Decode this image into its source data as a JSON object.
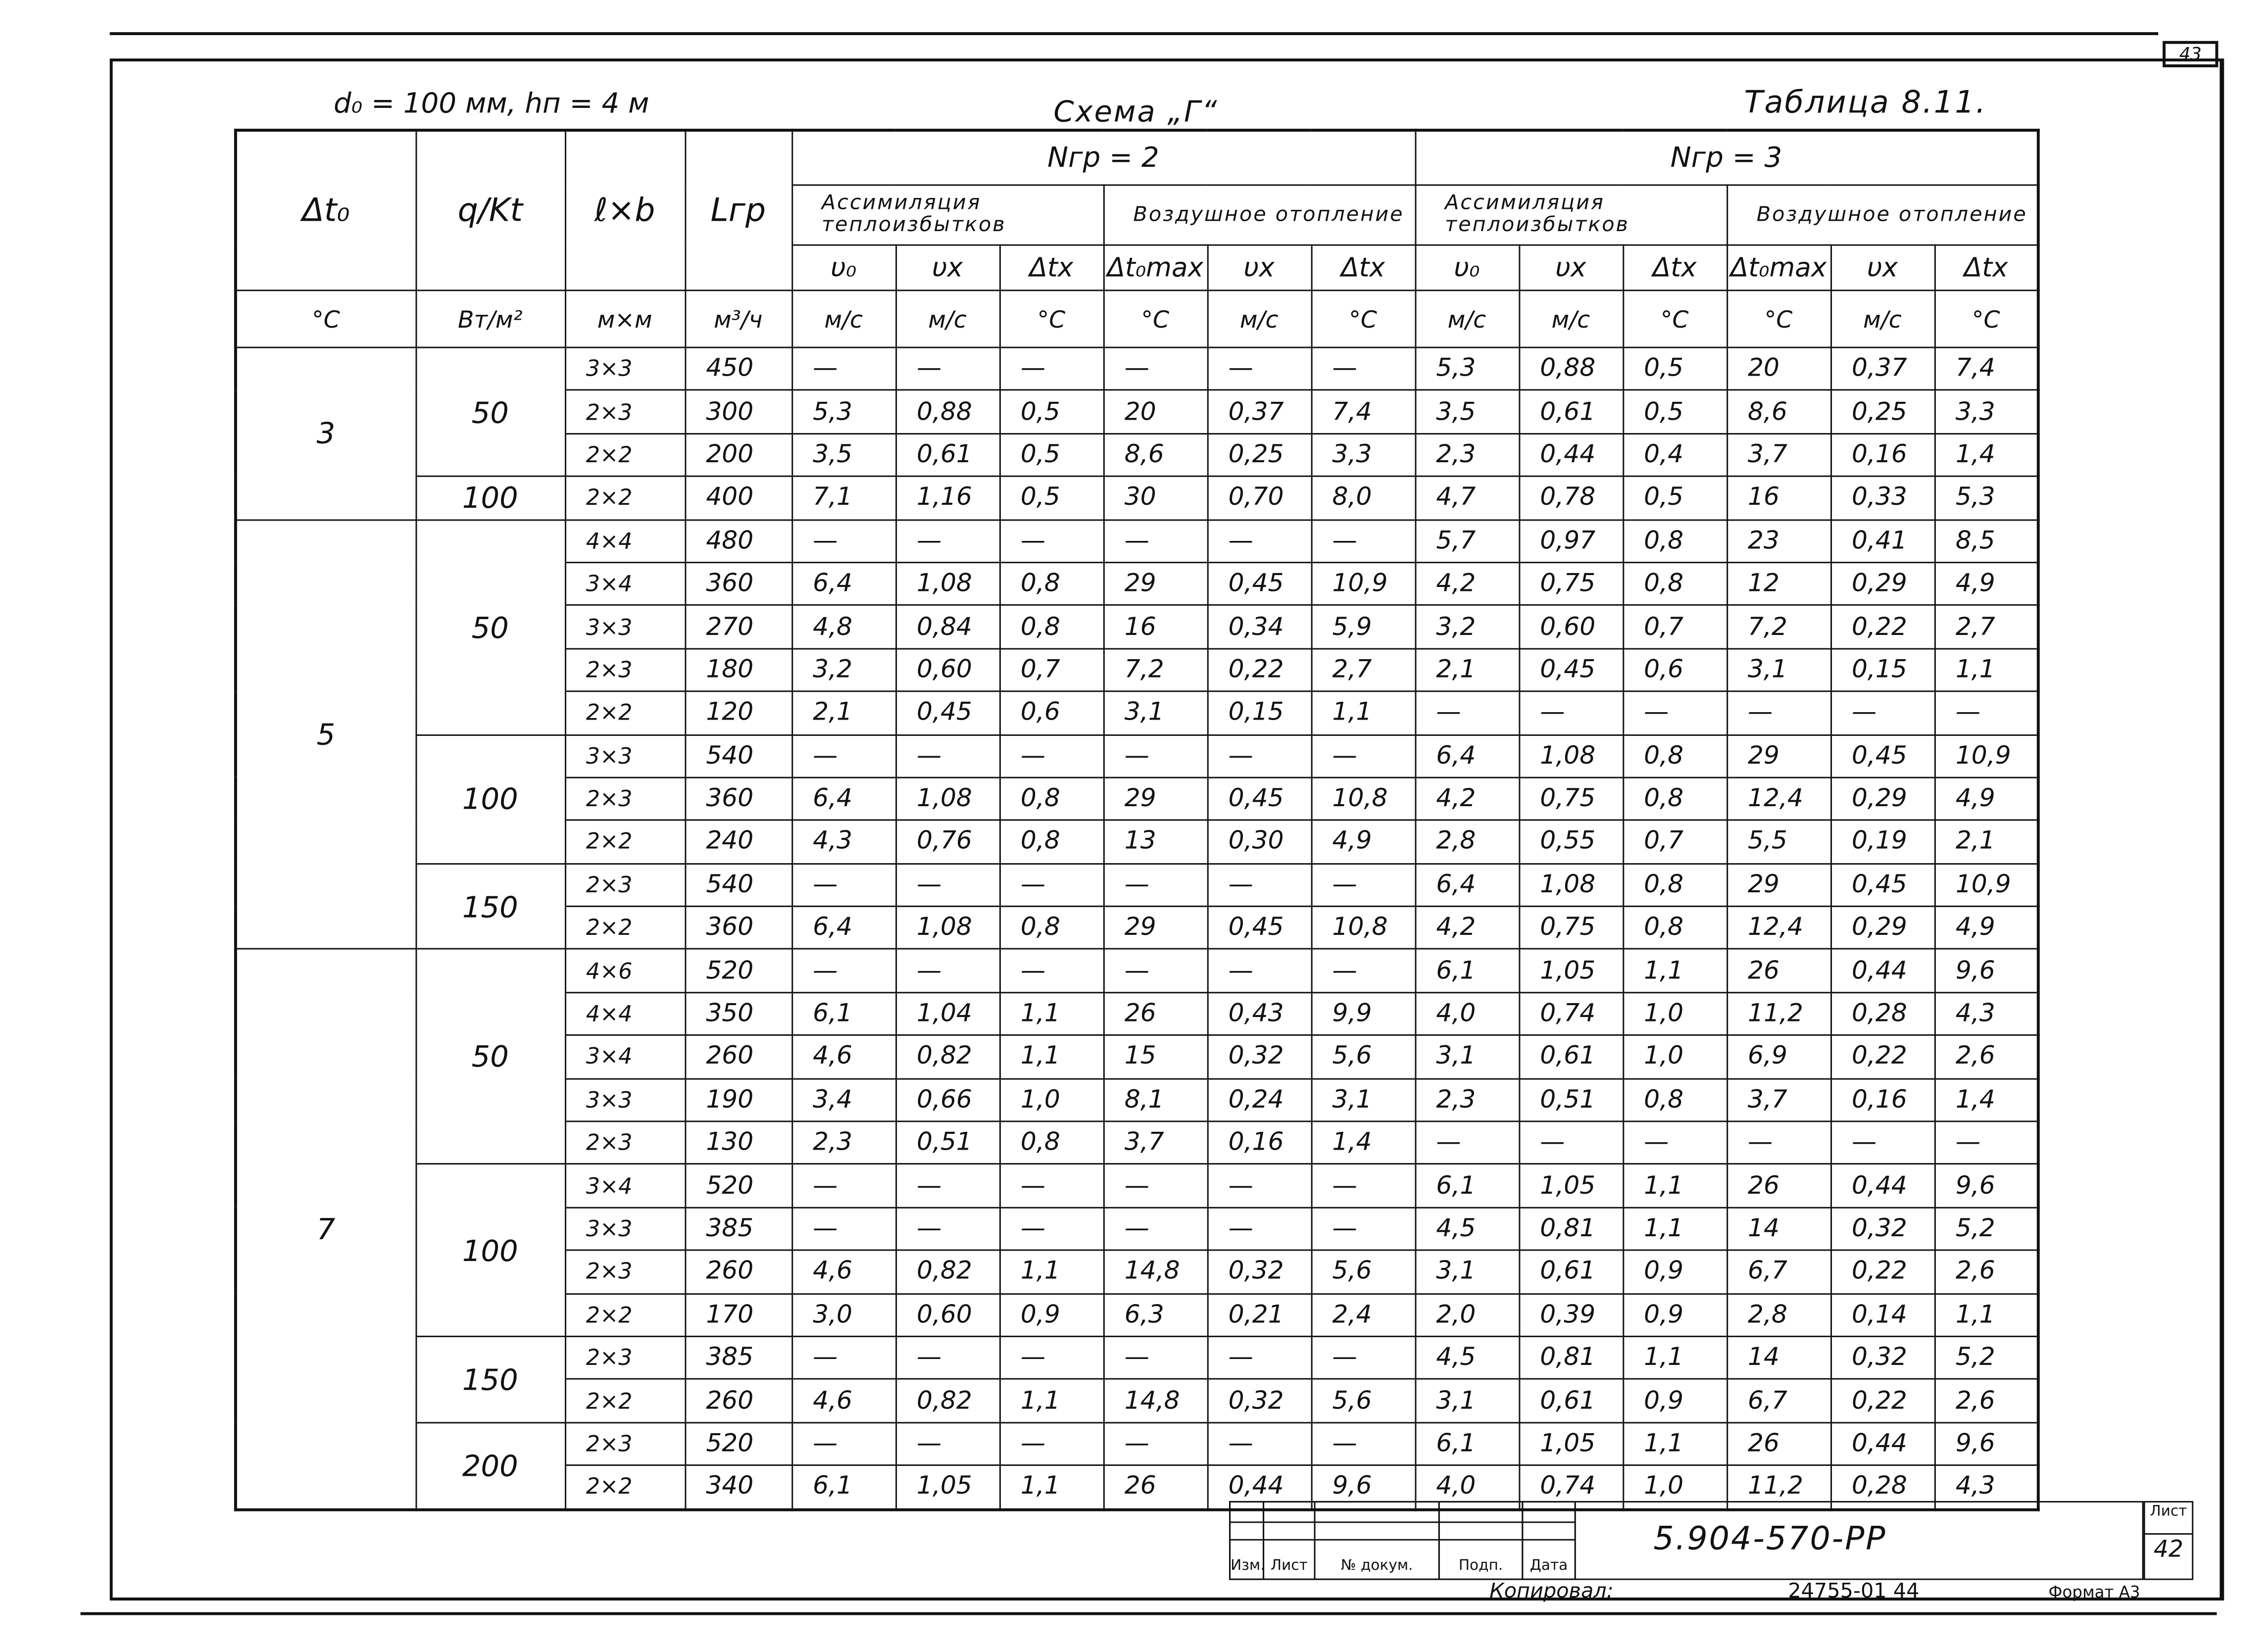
{
  "page_corner": "43",
  "header": {
    "parameters": "d₀ = 100 мм,  hп = 4 м",
    "scheme": "Схема „Г“",
    "table_number": "Таблица 8.11."
  },
  "table": {
    "head": {
      "dt": "Δt₀",
      "q": "q/Kt",
      "lb": "ℓ×b",
      "L": "Lгр",
      "n_groups": [
        "Nгр = 2",
        "Nгр = 3"
      ],
      "subgroups": [
        "Ассимиляция теплоизбытков",
        "Воздушное отопление",
        "Ассимиляция теплоизбытков",
        "Воздушное отопление"
      ],
      "symbols": [
        "υ₀",
        "υx",
        "Δtx",
        "Δt₀max",
        "υx",
        "Δtx",
        "υ₀",
        "υx",
        "Δtx",
        "Δt₀max",
        "υx",
        "Δtx"
      ],
      "units": [
        "°C",
        "Вт/м²",
        "м×м",
        "м³/ч",
        "м/с",
        "м/с",
        "°C",
        "°C",
        "м/с",
        "°C",
        "м/с",
        "м/с",
        "°C",
        "°C",
        "м/с",
        "°C"
      ]
    },
    "groups": [
      {
        "dt": "3",
        "subgroups": [
          {
            "q": "50",
            "rows": [
              {
                "size": "3×3",
                "length": "450",
                "values": [
                  "—",
                  "—",
                  "—",
                  "—",
                  "—",
                  "—",
                  "5,3",
                  "0,88",
                  "0,5",
                  "20",
                  "0,37",
                  "7,4"
                ]
              },
              {
                "size": "2×3",
                "length": "300",
                "values": [
                  "5,3",
                  "0,88",
                  "0,5",
                  "20",
                  "0,37",
                  "7,4",
                  "3,5",
                  "0,61",
                  "0,5",
                  "8,6",
                  "0,25",
                  "3,3"
                ]
              },
              {
                "size": "2×2",
                "length": "200",
                "values": [
                  "3,5",
                  "0,61",
                  "0,5",
                  "8,6",
                  "0,25",
                  "3,3",
                  "2,3",
                  "0,44",
                  "0,4",
                  "3,7",
                  "0,16",
                  "1,4"
                ]
              }
            ]
          },
          {
            "q": "100",
            "rows": [
              {
                "size": "2×2",
                "length": "400",
                "values": [
                  "7,1",
                  "1,16",
                  "0,5",
                  "30",
                  "0,70",
                  "8,0",
                  "4,7",
                  "0,78",
                  "0,5",
                  "16",
                  "0,33",
                  "5,3"
                ]
              }
            ]
          }
        ]
      },
      {
        "dt": "5",
        "subgroups": [
          {
            "q": "50",
            "rows": [
              {
                "size": "4×4",
                "length": "480",
                "values": [
                  "—",
                  "—",
                  "—",
                  "—",
                  "—",
                  "—",
                  "5,7",
                  "0,97",
                  "0,8",
                  "23",
                  "0,41",
                  "8,5"
                ]
              },
              {
                "size": "3×4",
                "length": "360",
                "values": [
                  "6,4",
                  "1,08",
                  "0,8",
                  "29",
                  "0,45",
                  "10,9",
                  "4,2",
                  "0,75",
                  "0,8",
                  "12",
                  "0,29",
                  "4,9"
                ]
              },
              {
                "size": "3×3",
                "length": "270",
                "values": [
                  "4,8",
                  "0,84",
                  "0,8",
                  "16",
                  "0,34",
                  "5,9",
                  "3,2",
                  "0,60",
                  "0,7",
                  "7,2",
                  "0,22",
                  "2,7"
                ]
              },
              {
                "size": "2×3",
                "length": "180",
                "values": [
                  "3,2",
                  "0,60",
                  "0,7",
                  "7,2",
                  "0,22",
                  "2,7",
                  "2,1",
                  "0,45",
                  "0,6",
                  "3,1",
                  "0,15",
                  "1,1"
                ]
              },
              {
                "size": "2×2",
                "length": "120",
                "values": [
                  "2,1",
                  "0,45",
                  "0,6",
                  "3,1",
                  "0,15",
                  "1,1",
                  "—",
                  "—",
                  "—",
                  "—",
                  "—",
                  "—"
                ]
              }
            ]
          },
          {
            "q": "100",
            "rows": [
              {
                "size": "3×3",
                "length": "540",
                "values": [
                  "—",
                  "—",
                  "—",
                  "—",
                  "—",
                  "—",
                  "6,4",
                  "1,08",
                  "0,8",
                  "29",
                  "0,45",
                  "10,9"
                ]
              },
              {
                "size": "2×3",
                "length": "360",
                "values": [
                  "6,4",
                  "1,08",
                  "0,8",
                  "29",
                  "0,45",
                  "10,8",
                  "4,2",
                  "0,75",
                  "0,8",
                  "12,4",
                  "0,29",
                  "4,9"
                ]
              },
              {
                "size": "2×2",
                "length": "240",
                "values": [
                  "4,3",
                  "0,76",
                  "0,8",
                  "13",
                  "0,30",
                  "4,9",
                  "2,8",
                  "0,55",
                  "0,7",
                  "5,5",
                  "0,19",
                  "2,1"
                ]
              }
            ]
          },
          {
            "q": "150",
            "rows": [
              {
                "size": "2×3",
                "length": "540",
                "values": [
                  "—",
                  "—",
                  "—",
                  "—",
                  "—",
                  "—",
                  "6,4",
                  "1,08",
                  "0,8",
                  "29",
                  "0,45",
                  "10,9"
                ]
              },
              {
                "size": "2×2",
                "length": "360",
                "values": [
                  "6,4",
                  "1,08",
                  "0,8",
                  "29",
                  "0,45",
                  "10,8",
                  "4,2",
                  "0,75",
                  "0,8",
                  "12,4",
                  "0,29",
                  "4,9"
                ]
              }
            ]
          }
        ]
      },
      {
        "dt": "7",
        "subgroups": [
          {
            "q": "50",
            "rows": [
              {
                "size": "4×6",
                "length": "520",
                "values": [
                  "—",
                  "—",
                  "—",
                  "—",
                  "—",
                  "—",
                  "6,1",
                  "1,05",
                  "1,1",
                  "26",
                  "0,44",
                  "9,6"
                ]
              },
              {
                "size": "4×4",
                "length": "350",
                "values": [
                  "6,1",
                  "1,04",
                  "1,1",
                  "26",
                  "0,43",
                  "9,9",
                  "4,0",
                  "0,74",
                  "1,0",
                  "11,2",
                  "0,28",
                  "4,3"
                ]
              },
              {
                "size": "3×4",
                "length": "260",
                "values": [
                  "4,6",
                  "0,82",
                  "1,1",
                  "15",
                  "0,32",
                  "5,6",
                  "3,1",
                  "0,61",
                  "1,0",
                  "6,9",
                  "0,22",
                  "2,6"
                ]
              },
              {
                "size": "3×3",
                "length": "190",
                "values": [
                  "3,4",
                  "0,66",
                  "1,0",
                  "8,1",
                  "0,24",
                  "3,1",
                  "2,3",
                  "0,51",
                  "0,8",
                  "3,7",
                  "0,16",
                  "1,4"
                ]
              },
              {
                "size": "2×3",
                "length": "130",
                "values": [
                  "2,3",
                  "0,51",
                  "0,8",
                  "3,7",
                  "0,16",
                  "1,4",
                  "—",
                  "—",
                  "—",
                  "—",
                  "—",
                  "—"
                ]
              }
            ]
          },
          {
            "q": "100",
            "rows": [
              {
                "size": "3×4",
                "length": "520",
                "values": [
                  "—",
                  "—",
                  "—",
                  "—",
                  "—",
                  "—",
                  "6,1",
                  "1,05",
                  "1,1",
                  "26",
                  "0,44",
                  "9,6"
                ]
              },
              {
                "size": "3×3",
                "length": "385",
                "values": [
                  "—",
                  "—",
                  "—",
                  "—",
                  "—",
                  "—",
                  "4,5",
                  "0,81",
                  "1,1",
                  "14",
                  "0,32",
                  "5,2"
                ]
              },
              {
                "size": "2×3",
                "length": "260",
                "values": [
                  "4,6",
                  "0,82",
                  "1,1",
                  "14,8",
                  "0,32",
                  "5,6",
                  "3,1",
                  "0,61",
                  "0,9",
                  "6,7",
                  "0,22",
                  "2,6"
                ]
              },
              {
                "size": "2×2",
                "length": "170",
                "values": [
                  "3,0",
                  "0,60",
                  "0,9",
                  "6,3",
                  "0,21",
                  "2,4",
                  "2,0",
                  "0,39",
                  "0,9",
                  "2,8",
                  "0,14",
                  "1,1"
                ]
              }
            ]
          },
          {
            "q": "150",
            "rows": [
              {
                "size": "2×3",
                "length": "385",
                "values": [
                  "—",
                  "—",
                  "—",
                  "—",
                  "—",
                  "—",
                  "4,5",
                  "0,81",
                  "1,1",
                  "14",
                  "0,32",
                  "5,2"
                ]
              },
              {
                "size": "2×2",
                "length": "260",
                "values": [
                  "4,6",
                  "0,82",
                  "1,1",
                  "14,8",
                  "0,32",
                  "5,6",
                  "3,1",
                  "0,61",
                  "0,9",
                  "6,7",
                  "0,22",
                  "2,6"
                ]
              }
            ]
          },
          {
            "q": "200",
            "rows": [
              {
                "size": "2×3",
                "length": "520",
                "values": [
                  "—",
                  "—",
                  "—",
                  "—",
                  "—",
                  "—",
                  "6,1",
                  "1,05",
                  "1,1",
                  "26",
                  "0,44",
                  "9,6"
                ]
              },
              {
                "size": "2×2",
                "length": "340",
                "values": [
                  "6,1",
                  "1,05",
                  "1,1",
                  "26",
                  "0,44",
                  "9,6",
                  "4,0",
                  "0,74",
                  "1,0",
                  "11,2",
                  "0,28",
                  "4,3"
                ]
              }
            ]
          }
        ]
      }
    ]
  },
  "title_block": {
    "labels": [
      "Изм.",
      "Лист",
      "№ докум.",
      "Подп.",
      "Дата"
    ],
    "code": "5.904-570-РР",
    "sheet_label": "Лист",
    "sheet_number": "42",
    "copied": "Копировал:",
    "order": "24755-01  44",
    "format": "Формат А3"
  }
}
